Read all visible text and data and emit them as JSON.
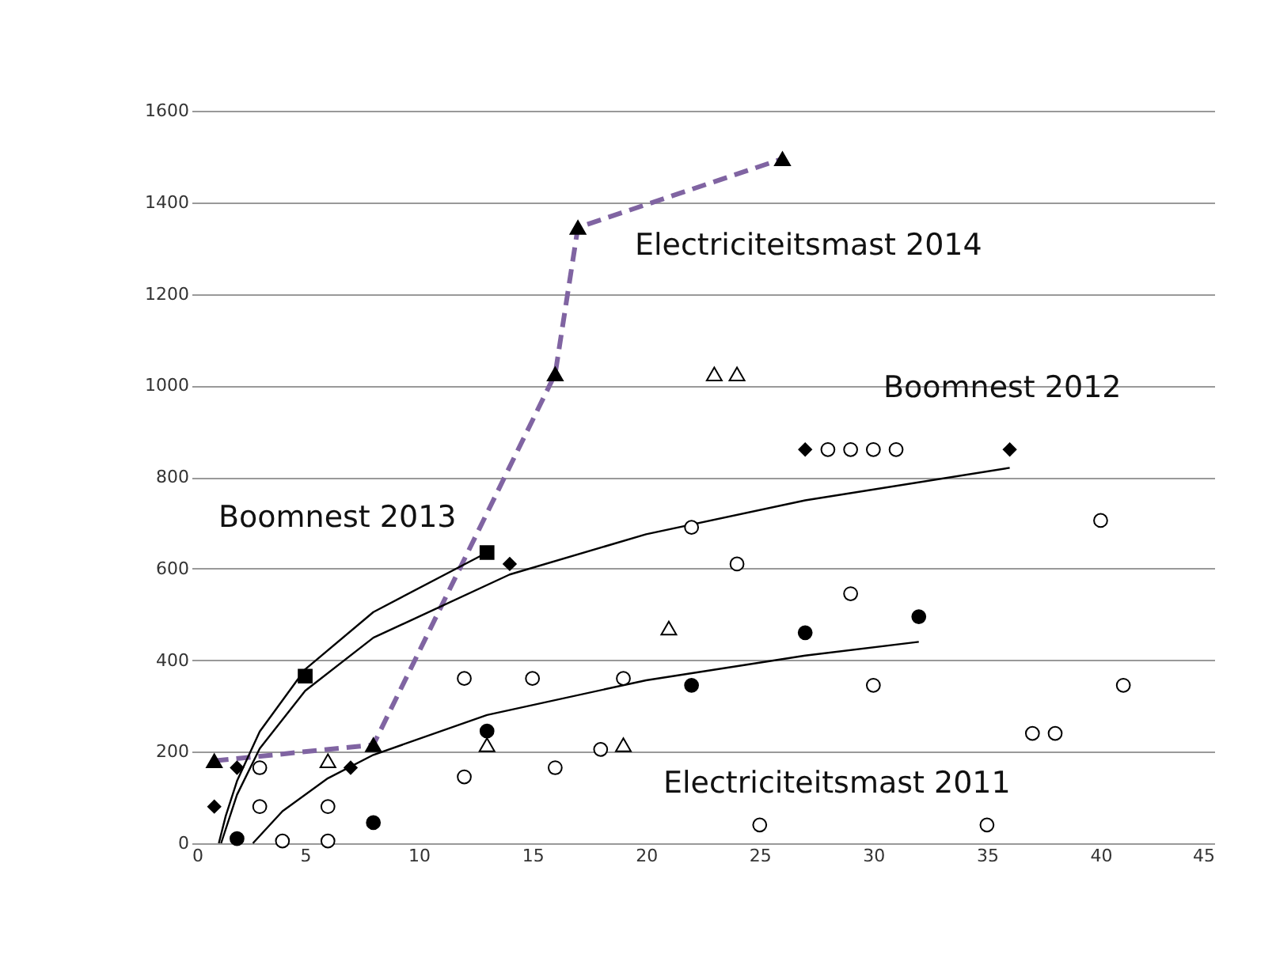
{
  "chart_data": {
    "type": "scatter",
    "xlim": [
      0,
      45
    ],
    "xticks": [
      0,
      5,
      10,
      15,
      20,
      25,
      30,
      35,
      40,
      45
    ],
    "ylim": [
      0,
      1600
    ],
    "yticks": [
      0,
      200,
      400,
      600,
      800,
      1000,
      1200,
      1400,
      1600
    ],
    "grid": "y",
    "annotations": [
      "Electriciteitsmast 2014",
      "Boomnest 2012",
      "Boomnest 2013",
      "Electriciteitsmast 2011"
    ],
    "series": [
      {
        "type": "line",
        "color": "#8064a2",
        "line_style": "dashed",
        "marker": "none",
        "x": [
          1,
          8,
          16,
          17,
          26
        ],
        "values": [
          180,
          215,
          1025,
          1345,
          1495
        ]
      },
      {
        "type": "line",
        "color": "#000000",
        "line_style": "solid",
        "marker": "none",
        "x": [
          1.2,
          1.5,
          2,
          3,
          5,
          8,
          13
        ],
        "values": [
          0,
          59,
          136,
          244,
          380,
          505,
          635
        ]
      },
      {
        "type": "line",
        "color": "#000000",
        "line_style": "solid",
        "marker": "none",
        "x": [
          1.3,
          2,
          3,
          5,
          8,
          14,
          20,
          27,
          36
        ],
        "values": [
          0,
          106,
          207,
          333,
          449,
          587,
          675,
          749,
          820
        ]
      },
      {
        "type": "line",
        "color": "#000000",
        "line_style": "solid",
        "marker": "none",
        "x": [
          2.7,
          4,
          6,
          8,
          13,
          20,
          27,
          32
        ],
        "values": [
          0,
          70,
          142,
          193,
          280,
          356,
          410,
          440
        ]
      },
      {
        "color": "#ffffff",
        "marker": "circle",
        "x": [
          3,
          3,
          4,
          6,
          6,
          12,
          12,
          15,
          16,
          18,
          19,
          22,
          24,
          25,
          29,
          30,
          28,
          29,
          30,
          31,
          35,
          37,
          38,
          40,
          41
        ],
        "values": [
          165,
          80,
          5,
          80,
          5,
          360,
          145,
          360,
          165,
          205,
          360,
          690,
          610,
          40,
          545,
          345,
          860,
          860,
          860,
          860,
          40,
          240,
          240,
          705,
          345
        ]
      },
      {
        "color": "#ffffff",
        "marker": "triangle",
        "x": [
          6,
          13,
          19,
          21,
          23,
          24
        ],
        "values": [
          180,
          215,
          215,
          470,
          1025,
          1025
        ]
      },
      {
        "color": "#000000",
        "marker": "circle",
        "x": [
          2,
          8,
          13,
          22,
          27,
          32
        ],
        "values": [
          10,
          45,
          245,
          345,
          460,
          495
        ]
      },
      {
        "color": "#000000",
        "marker": "diamond",
        "x": [
          1,
          2,
          7,
          14,
          27,
          36
        ],
        "values": [
          80,
          165,
          165,
          610,
          860,
          860
        ]
      },
      {
        "color": "#000000",
        "marker": "square",
        "x": [
          5,
          13
        ],
        "values": [
          365,
          635
        ]
      },
      {
        "color": "#000000",
        "marker": "triangle",
        "x": [
          1,
          8,
          16,
          17,
          26
        ],
        "values": [
          180,
          215,
          1025,
          1345,
          1495
        ]
      }
    ]
  }
}
